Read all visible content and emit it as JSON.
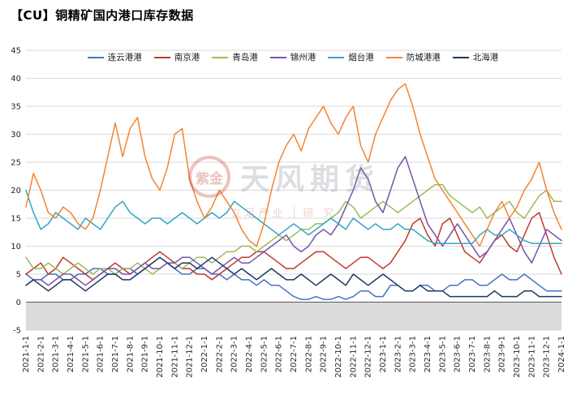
{
  "title": "【CU】铜精矿国内港口库存数据",
  "watermark": {
    "logo_text": "紫金",
    "line1": "天风期货",
    "line2a": "立足产业",
    "line2b": "研 究"
  },
  "chart_data": {
    "type": "line",
    "title": "【CU】铜精矿国内港口库存数据",
    "xlabel": "",
    "ylabel": "",
    "ylim": [
      -5,
      45
    ],
    "ytick_step": 5,
    "grid": true,
    "legend_position": "top",
    "points_per_month": 2,
    "x_tick_labels": [
      "2021-1-1",
      "2021-2-1",
      "2021-3-1",
      "2021-4-1",
      "2021-5-1",
      "2021-6-1",
      "2021-7-1",
      "2021-8-1",
      "2021-9-1",
      "2021-10-1",
      "2021-11-1",
      "2021-12-1",
      "2022-1-1",
      "2022-2-1",
      "2022-3-1",
      "2022-4-1",
      "2022-5-1",
      "2022-6-1",
      "2022-7-1",
      "2022-8-1",
      "2022-9-1",
      "2022-10-1",
      "2022-11-1",
      "2022-12-1",
      "2023-1-1",
      "2023-2-1",
      "2023-3-1",
      "2023-4-1",
      "2023-5-1",
      "2023-6-1",
      "2023-7-1",
      "2023-8-1",
      "2023-9-1",
      "2023-10-1",
      "2023-11-1",
      "2023-12-1",
      "2024-1-1"
    ],
    "series": [
      {
        "name": "连云港港",
        "color": "#4472C4",
        "values": [
          5,
          4,
          4,
          5,
          5,
          4,
          4,
          5,
          5,
          6,
          6,
          5,
          5,
          6,
          6,
          5,
          6,
          7,
          8,
          7,
          6,
          5,
          5,
          6,
          6,
          5,
          5,
          4,
          5,
          4,
          4,
          3,
          4,
          3,
          3,
          2,
          1,
          0.5,
          0.5,
          1,
          0.5,
          0.5,
          1,
          0.5,
          1,
          2,
          2,
          1,
          1,
          3,
          3,
          2,
          2,
          3,
          3,
          2,
          2,
          3,
          3,
          4,
          4,
          3,
          3,
          4,
          5,
          4,
          4,
          5,
          4,
          3,
          2,
          2,
          2
        ]
      },
      {
        "name": "南京港",
        "color": "#C0392B",
        "values": [
          5,
          6,
          7,
          5,
          6,
          8,
          7,
          6,
          5,
          4,
          5,
          6,
          7,
          6,
          5,
          6,
          7,
          8,
          9,
          8,
          7,
          6,
          6,
          5,
          5,
          4,
          5,
          6,
          7,
          8,
          8,
          9,
          9,
          8,
          7,
          6,
          6,
          7,
          8,
          9,
          9,
          8,
          7,
          6,
          7,
          8,
          8,
          7,
          6,
          7,
          9,
          11,
          14,
          15,
          12,
          10,
          14,
          15,
          12,
          9,
          8,
          7,
          9,
          11,
          12,
          10,
          9,
          12,
          15,
          16,
          12,
          8,
          5
        ]
      },
      {
        "name": "青岛港",
        "color": "#9BBB59",
        "values": [
          8,
          6,
          6,
          7,
          6,
          5,
          6,
          7,
          6,
          5,
          6,
          6,
          5,
          6,
          6,
          7,
          6,
          5,
          6,
          7,
          7,
          6,
          7,
          8,
          8,
          7,
          8,
          9,
          9,
          10,
          10,
          9,
          10,
          11,
          12,
          11,
          12,
          13,
          13,
          14,
          14,
          15,
          16,
          18,
          17,
          15,
          16,
          17,
          18,
          17,
          16,
          17,
          18,
          19,
          20,
          21,
          21,
          19,
          18,
          17,
          16,
          17,
          15,
          16,
          17,
          18,
          16,
          15,
          17,
          19,
          20,
          18,
          18
        ]
      },
      {
        "name": "锦州港",
        "color": "#7852A9",
        "values": [
          3,
          4,
          4,
          3,
          4,
          5,
          5,
          4,
          3,
          4,
          5,
          6,
          6,
          5,
          5,
          6,
          7,
          6,
          6,
          7,
          7,
          8,
          8,
          7,
          6,
          5,
          6,
          7,
          8,
          7,
          7,
          8,
          9,
          10,
          11,
          12,
          10,
          9,
          10,
          12,
          13,
          12,
          14,
          17,
          20,
          24,
          22,
          18,
          16,
          20,
          24,
          26,
          22,
          18,
          14,
          12,
          10,
          12,
          14,
          12,
          10,
          8,
          9,
          11,
          13,
          15,
          12,
          9,
          7,
          10,
          13,
          12,
          11
        ]
      },
      {
        "name": "烟台港",
        "color": "#31A5C4",
        "values": [
          20,
          16,
          13,
          14,
          16,
          15,
          14,
          13,
          15,
          14,
          13,
          15,
          17,
          18,
          16,
          15,
          14,
          15,
          15,
          14,
          15,
          16,
          15,
          14,
          15,
          16,
          15,
          16,
          18,
          17,
          16,
          15,
          14,
          13,
          12,
          13,
          14,
          13,
          12,
          13,
          14,
          15,
          14,
          13,
          15,
          14,
          13,
          14,
          13,
          13,
          14,
          13,
          13,
          12,
          11,
          10.5,
          10.5,
          10.5,
          10.5,
          10.5,
          10.5,
          12,
          13,
          12,
          12,
          13,
          12,
          11,
          10.5,
          10.5,
          10.5,
          10.5,
          10.5
        ]
      },
      {
        "name": "防城港港",
        "color": "#F5832F",
        "values": [
          17,
          23,
          20,
          16,
          15,
          17,
          16,
          14,
          13,
          15,
          20,
          26,
          32,
          26,
          31,
          33,
          26,
          22,
          20,
          24,
          30,
          31,
          22,
          18,
          15,
          17,
          20,
          18,
          16,
          13,
          11,
          10,
          14,
          20,
          25,
          28,
          30,
          27,
          31,
          33,
          35,
          32,
          30,
          33,
          35,
          28,
          25,
          30,
          33,
          36,
          38,
          39,
          35,
          30,
          26,
          22,
          20,
          18,
          16,
          14,
          12,
          10,
          13,
          16,
          18,
          15,
          17,
          20,
          22,
          25,
          20,
          16,
          13
        ]
      },
      {
        "name": "北海港",
        "color": "#1F3864",
        "values": [
          3,
          4,
          3,
          2,
          3,
          4,
          4,
          3,
          2,
          3,
          4,
          5,
          5,
          4,
          4,
          5,
          6,
          7,
          8,
          7,
          6,
          7,
          7,
          6,
          7,
          8,
          7,
          6,
          5,
          6,
          5,
          4,
          5,
          6,
          5,
          4,
          4,
          5,
          4,
          3,
          4,
          5,
          4,
          3,
          5,
          4,
          3,
          4,
          5,
          4,
          3,
          2,
          2,
          3,
          2,
          2,
          2,
          1,
          1,
          1,
          1,
          1,
          1,
          2,
          1,
          1,
          1,
          2,
          2,
          1,
          1,
          1,
          1
        ]
      }
    ]
  }
}
